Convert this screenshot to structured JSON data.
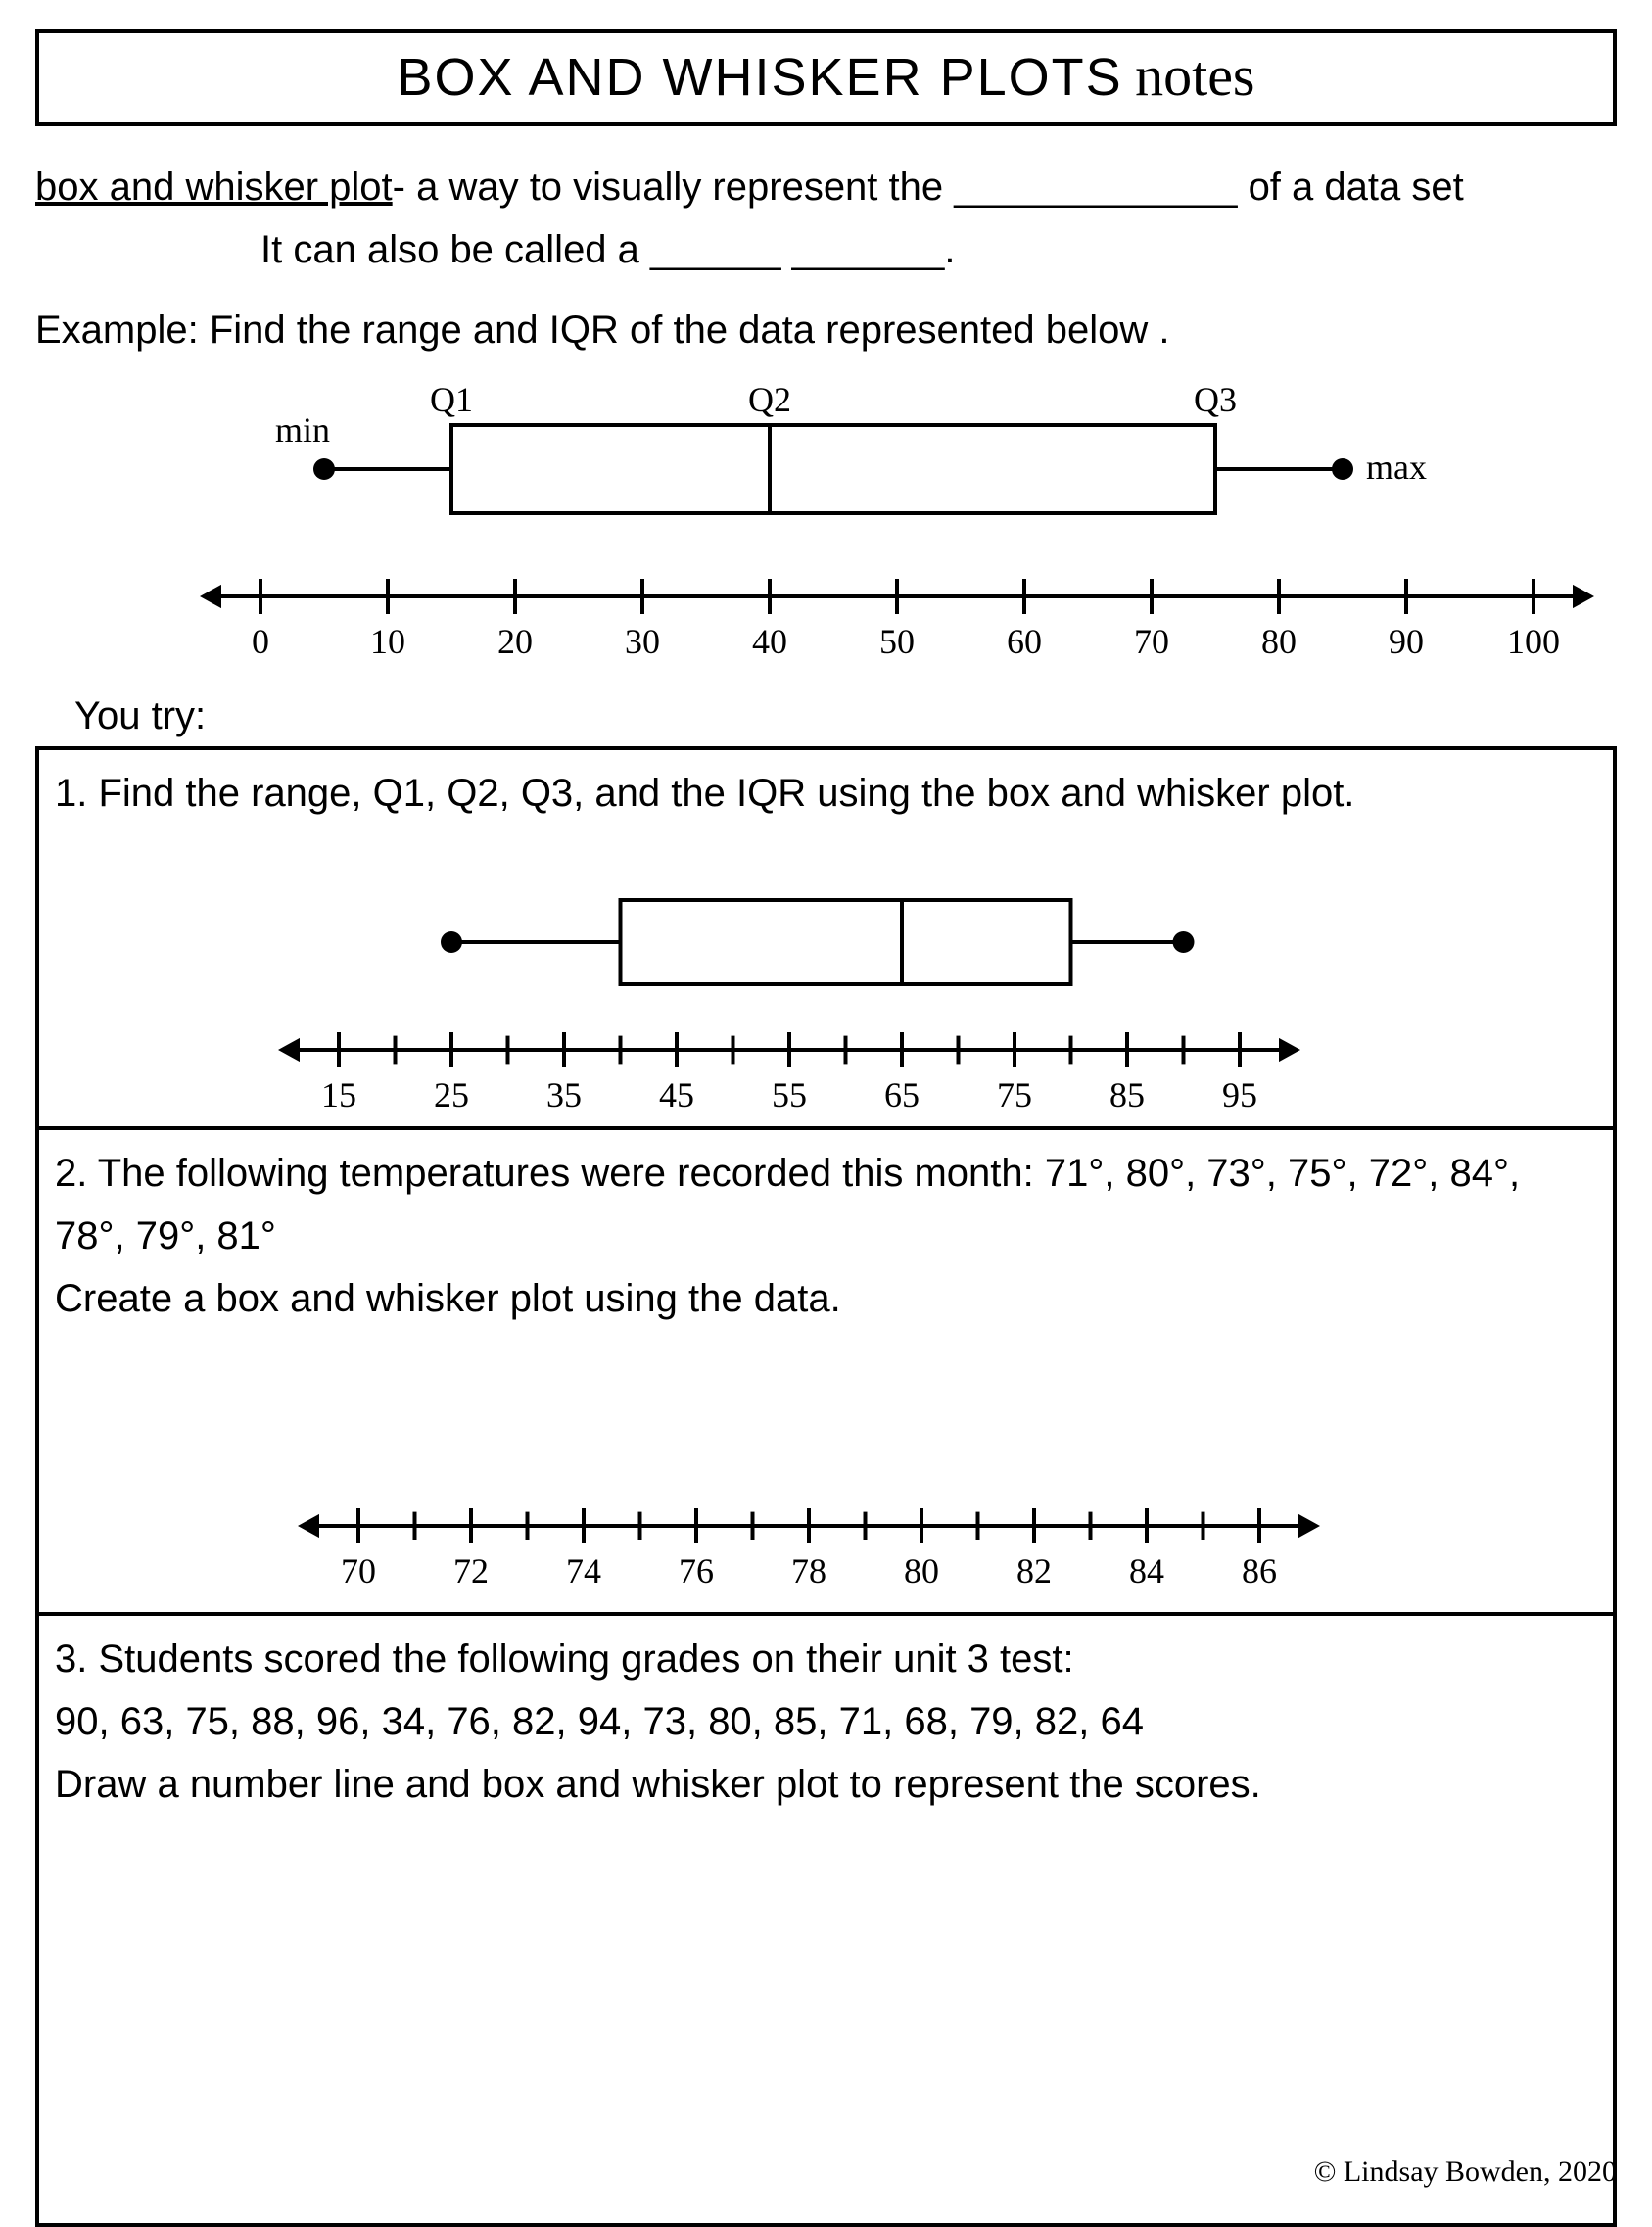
{
  "title": {
    "main": "BOX AND WHISKER PLOTS",
    "script": "notes"
  },
  "definition": {
    "term": "box and whisker plot",
    "line1_after_term": "- a way to visually represent the _____________ of a data set",
    "line2": "It can also be called a ______ _______."
  },
  "example_prompt": "Example: Find the range and IQR of the data represented below .",
  "example_plot": {
    "type": "boxplot",
    "number_line": {
      "min": 0,
      "max": 100,
      "step": 10,
      "labels": [
        "0",
        "10",
        "20",
        "30",
        "40",
        "50",
        "60",
        "70",
        "80",
        "90",
        "100"
      ]
    },
    "min_val": 5,
    "q1": 15,
    "q2": 40,
    "q3": 75,
    "max_val": 85,
    "label_min": "min",
    "label_q1": "Q1",
    "label_q2": "Q2",
    "label_q3": "Q3",
    "label_max": "max",
    "line_color": "#000000",
    "line_width": 4,
    "dot_radius": 11,
    "box_fill": "none",
    "tick_len": 18,
    "arrow_size": 22,
    "font_size": 36
  },
  "you_try_label": "You try:",
  "problems": {
    "p1": {
      "text": "1. Find the range, Q1, Q2, Q3, and the IQR using the box and whisker plot.",
      "plot": {
        "type": "boxplot",
        "number_line": {
          "min": 15,
          "max": 95,
          "step": 10,
          "minor_step": 5,
          "labels": [
            "15",
            "25",
            "35",
            "45",
            "55",
            "65",
            "75",
            "85",
            "95"
          ]
        },
        "min_val": 25,
        "q1": 40,
        "q2": 65,
        "q3": 80,
        "max_val": 90,
        "line_color": "#000000",
        "line_width": 4,
        "dot_radius": 11,
        "tick_len": 18,
        "arrow_size": 22,
        "font_size": 36
      }
    },
    "p2": {
      "text_line1": "2. The following temperatures were recorded this month: 71°, 80°, 73°, 75°, 72°, 84°, 78°, 79°, 81°",
      "text_line2": "Create a box and whisker plot using the data.",
      "plot": {
        "type": "number_line_only",
        "number_line": {
          "min": 70,
          "max": 86,
          "step": 2,
          "minor_step": 1,
          "labels": [
            "70",
            "72",
            "74",
            "76",
            "78",
            "80",
            "82",
            "84",
            "86"
          ]
        },
        "line_color": "#000000",
        "line_width": 4,
        "tick_len": 18,
        "arrow_size": 22,
        "font_size": 36
      }
    },
    "p3": {
      "text_line1": "3. Students scored the following grades on their unit 3 test:",
      "text_line2": "90, 63, 75, 88, 96, 34, 76, 82, 94, 73, 80, 85, 71, 68, 79, 82, 64",
      "text_line3": "Draw a number line and box and whisker plot to represent the scores."
    }
  },
  "credit": "© Lindsay Bowden, 2020"
}
